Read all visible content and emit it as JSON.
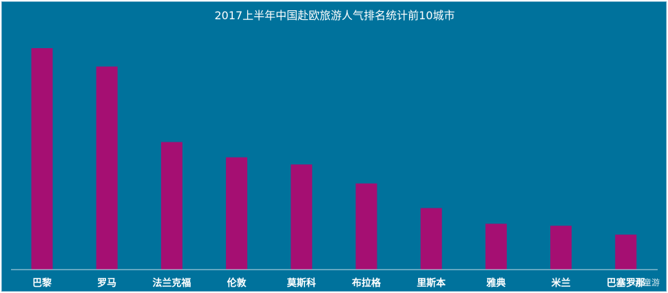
{
  "colors": {
    "background": "#00729c",
    "bar": "#a50f72",
    "text": "#ffffff",
    "axis": "#c8dfe9"
  },
  "watermark": "bb童游",
  "chart_data": {
    "type": "bar",
    "title": "2017上半年中国赴欧旅游人气排名统计前10城市",
    "xlabel": "",
    "ylabel": "",
    "categories": [
      "巴黎",
      "罗马",
      "法兰克福",
      "伦敦",
      "莫斯科",
      "布拉格",
      "里斯本",
      "雅典",
      "米兰",
      "巴塞罗那"
    ],
    "values": [
      100,
      91.7,
      57.6,
      50.7,
      47.5,
      38.9,
      27.8,
      20.7,
      19.8,
      15.8
    ],
    "ylim": [
      0,
      100
    ],
    "grid": false,
    "legend": "none"
  }
}
